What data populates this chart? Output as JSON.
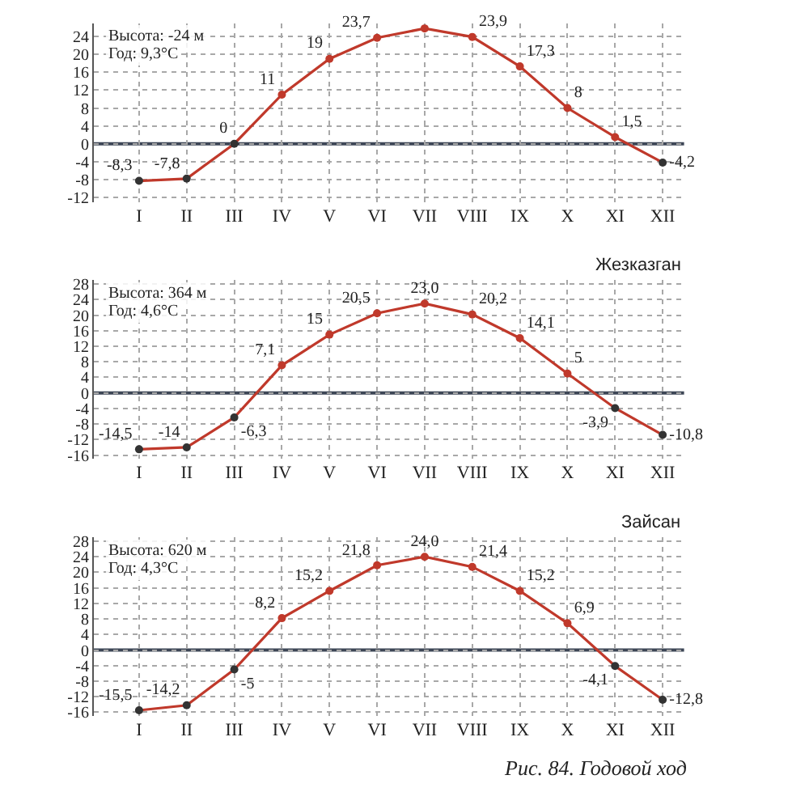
{
  "chart_data": [
    {
      "type": "line",
      "annotations": [
        "Высота: -24 м",
        "Год: 9,3°C"
      ],
      "categories": [
        "I",
        "II",
        "III",
        "IV",
        "V",
        "VI",
        "VII",
        "VIII",
        "IX",
        "X",
        "XI",
        "XII"
      ],
      "series": [
        {
          "color": "#c0392b",
          "colors": [
            "#333333",
            "#333333",
            "#333333",
            "#c0392b",
            "#c0392b",
            "#c0392b",
            "#c0392b",
            "#c0392b",
            "#c0392b",
            "#c0392b",
            "#c0392b",
            "#333333"
          ],
          "values": [
            -8.3,
            -7.8,
            0,
            11,
            19,
            23.7,
            25.8,
            23.9,
            17.3,
            8,
            1.5,
            -4.2
          ],
          "value_labels": [
            "-8,3",
            "-7,8",
            "0",
            "11",
            "19",
            "23,7",
            null,
            "23,9",
            "17,3",
            "8",
            "1,5",
            "-4,2"
          ]
        }
      ],
      "ylim": [
        -13,
        27
      ],
      "yticks": [
        -12,
        -8,
        -4,
        0,
        4,
        8,
        12,
        16,
        20,
        24
      ],
      "grid": true,
      "marker": "circle",
      "ref_lines": [
        {
          "axis": "y",
          "value": 0,
          "color": "#3d4656"
        }
      ]
    },
    {
      "type": "line",
      "title": "Жезказган",
      "annotations": [
        "Высота: 364 м",
        "Год: 4,6°C"
      ],
      "categories": [
        "I",
        "II",
        "III",
        "IV",
        "V",
        "VI",
        "VII",
        "VIII",
        "IX",
        "X",
        "XI",
        "XII"
      ],
      "series": [
        {
          "color": "#c0392b",
          "colors": [
            "#333333",
            "#333333",
            "#333333",
            "#c0392b",
            "#c0392b",
            "#c0392b",
            "#c0392b",
            "#c0392b",
            "#c0392b",
            "#c0392b",
            "#333333",
            "#333333"
          ],
          "values": [
            -14.5,
            -14,
            -6.3,
            7.1,
            15,
            20.5,
            23.0,
            20.2,
            14.1,
            5,
            -3.9,
            -10.8
          ],
          "value_labels": [
            "-14,5",
            "-14",
            "-6,3",
            "7,1",
            "15",
            "20,5",
            "23,0",
            "20,2",
            "14,1",
            "5",
            "-3,9",
            "-10,8"
          ]
        }
      ],
      "ylim": [
        -17,
        29
      ],
      "yticks": [
        -16,
        -12,
        -8,
        -4,
        0,
        4,
        8,
        12,
        16,
        20,
        24,
        28
      ],
      "grid": true,
      "marker": "circle",
      "ref_lines": [
        {
          "axis": "y",
          "value": 0,
          "color": "#3d4656"
        }
      ]
    },
    {
      "type": "line",
      "title": "Зайсан",
      "annotations": [
        "Высота: 620 м",
        "Год: 4,3°C",
        "Рис. 84. Годовой ход"
      ],
      "categories": [
        "I",
        "II",
        "III",
        "IV",
        "V",
        "VI",
        "VII",
        "VIII",
        "IX",
        "X",
        "XI",
        "XII"
      ],
      "series": [
        {
          "color": "#c0392b",
          "colors": [
            "#333333",
            "#333333",
            "#333333",
            "#c0392b",
            "#c0392b",
            "#c0392b",
            "#c0392b",
            "#c0392b",
            "#c0392b",
            "#c0392b",
            "#333333",
            "#333333"
          ],
          "values": [
            -15.5,
            -14.2,
            -5,
            8.2,
            15.2,
            21.8,
            24.0,
            21.4,
            15.2,
            6.9,
            -4.1,
            -12.8
          ],
          "value_labels": [
            "-15,5",
            "-14,2",
            "-5",
            "8,2",
            "15,2",
            "21,8",
            "24,0",
            "21,4",
            "15,2",
            "6,9",
            "-4,1",
            "-12,8"
          ]
        }
      ],
      "ylim": [
        -17,
        29
      ],
      "yticks": [
        -16,
        -12,
        -8,
        -4,
        0,
        4,
        8,
        12,
        16,
        20,
        24,
        28
      ],
      "grid": true,
      "marker": "circle",
      "ref_lines": [
        {
          "axis": "y",
          "value": 0,
          "color": "#3d4656"
        }
      ]
    }
  ]
}
